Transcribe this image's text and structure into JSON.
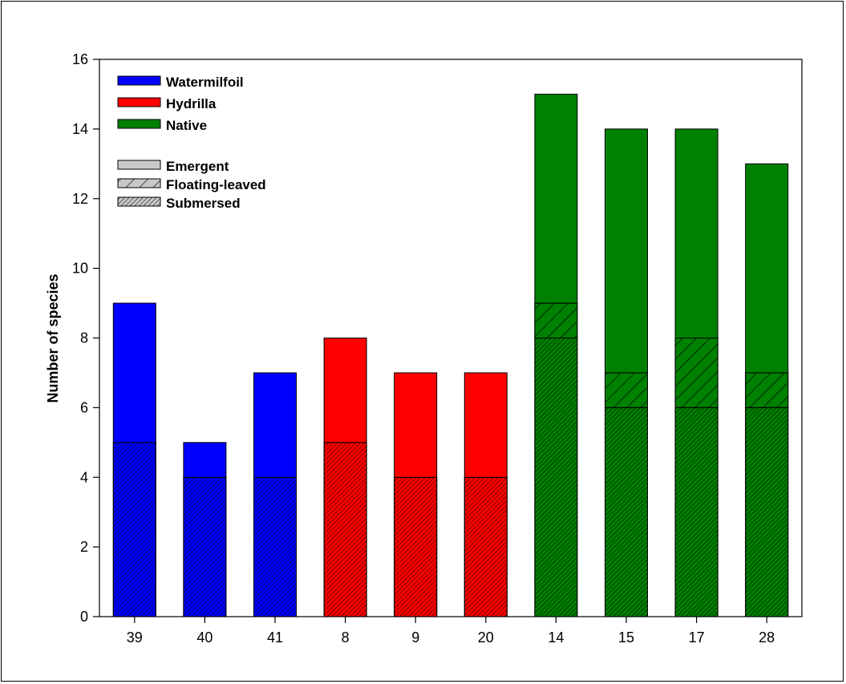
{
  "chart_data": {
    "type": "bar",
    "stacked": true,
    "title": "",
    "xlabel": "",
    "ylabel": "Number of species",
    "ylim": [
      0,
      16
    ],
    "yticks": [
      0,
      2,
      4,
      6,
      8,
      10,
      12,
      14,
      16
    ],
    "grid": false,
    "legend_position": "top-left",
    "categories": [
      "39",
      "40",
      "41",
      "8",
      "9",
      "20",
      "14",
      "15",
      "17",
      "28"
    ],
    "groups": [
      "Watermilfoil",
      "Watermilfoil",
      "Watermilfoil",
      "Hydrilla",
      "Hydrilla",
      "Hydrilla",
      "Native",
      "Native",
      "Native",
      "Native"
    ],
    "series": [
      {
        "name": "Submersed",
        "values": [
          5,
          4,
          4,
          5,
          4,
          4,
          8,
          6,
          6,
          6
        ]
      },
      {
        "name": "Floating-leaved",
        "values": [
          0,
          0,
          0,
          0,
          0,
          0,
          1,
          1,
          2,
          1
        ]
      },
      {
        "name": "Emergent",
        "values": [
          4,
          1,
          3,
          3,
          3,
          3,
          6,
          7,
          6,
          6
        ]
      }
    ],
    "totals": [
      9,
      5,
      7,
      8,
      7,
      7,
      15,
      14,
      14,
      13
    ],
    "group_colors": {
      "Watermilfoil": "#0000ff",
      "Hydrilla": "#ff0000",
      "Native": "#008000"
    },
    "legend": {
      "colors": [
        "Watermilfoil",
        "Hydrilla",
        "Native"
      ],
      "patterns": [
        {
          "label": "Emergent",
          "pattern": "solid"
        },
        {
          "label": "Floating-leaved",
          "pattern": "sparse-hatch"
        },
        {
          "label": "Submersed",
          "pattern": "dense-hatch"
        }
      ]
    }
  }
}
